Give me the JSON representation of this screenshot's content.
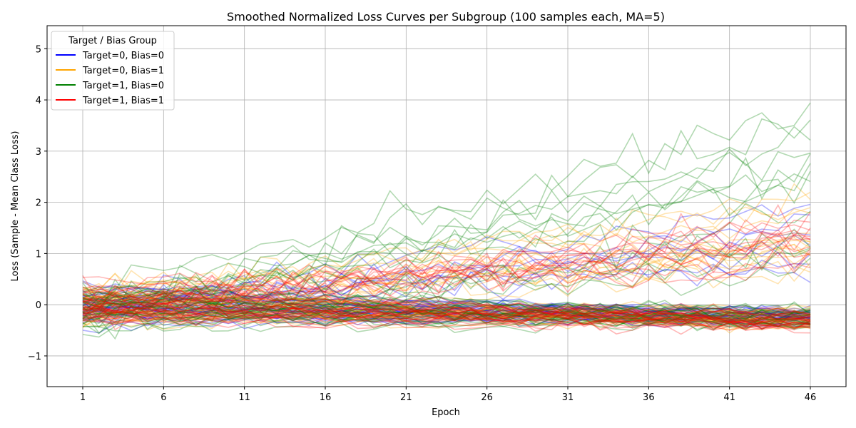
{
  "chart_data": {
    "type": "line",
    "title": "Smoothed Normalized Loss Curves per Subgroup (100 samples each, MA=5)",
    "xlabel": "Epoch",
    "ylabel": "Loss (Sample - Mean Class Loss)",
    "xlim": [
      1,
      46
    ],
    "ylim": [
      -1.6,
      5.45
    ],
    "xticks": [
      1,
      6,
      11,
      16,
      21,
      26,
      31,
      36,
      41,
      46
    ],
    "yticks": [
      -1,
      0,
      1,
      2,
      3,
      4,
      5
    ],
    "grid": true,
    "legend": {
      "title": "Target / Bias Group",
      "position": "top-left",
      "entries": [
        {
          "label": "Target=0, Bias=0",
          "color": "#0000ff"
        },
        {
          "label": "Target=0, Bias=1",
          "color": "#ffa500"
        },
        {
          "label": "Target=1, Bias=0",
          "color": "#008000"
        },
        {
          "label": "Target=1, Bias=1",
          "color": "#ff0000"
        }
      ]
    },
    "series": [
      {
        "name": "Target=0, Bias=0",
        "color": "#0000ff",
        "samples": 100
      },
      {
        "name": "Target=0, Bias=1",
        "color": "#ffa500",
        "samples": 100
      },
      {
        "name": "Target=1, Bias=0",
        "color": "#008000",
        "samples": 100
      },
      {
        "name": "Target=1, Bias=1",
        "color": "#ff0000",
        "samples": 100
      }
    ]
  }
}
